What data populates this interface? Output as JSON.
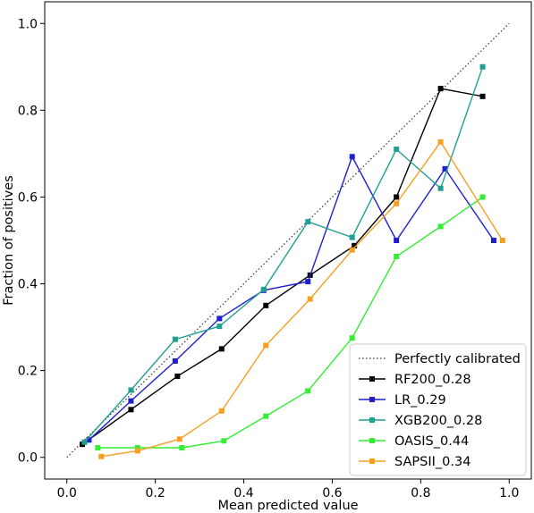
{
  "chart_data": {
    "type": "line",
    "xlabel": "Mean predicted value",
    "ylabel": "Fraction of positives",
    "xlim": [
      -0.05,
      1.05
    ],
    "ylim": [
      -0.05,
      1.05
    ],
    "xticks": [
      "0.0",
      "0.2",
      "0.4",
      "0.6",
      "0.8",
      "1.0"
    ],
    "yticks": [
      "0.0",
      "0.2",
      "0.4",
      "0.6",
      "0.8",
      "1.0"
    ],
    "legend_placement": "lower-right",
    "reference": {
      "name": "Perfectly calibrated",
      "x": [
        0,
        1
      ],
      "y": [
        0,
        1
      ],
      "color": "#333333",
      "style": "dotted"
    },
    "series": [
      {
        "name": "RF200_0.28",
        "color": "#000000",
        "x": [
          0.035,
          0.145,
          0.25,
          0.35,
          0.45,
          0.55,
          0.65,
          0.745,
          0.845,
          0.94
        ],
        "y": [
          0.03,
          0.11,
          0.187,
          0.25,
          0.35,
          0.42,
          0.488,
          0.6,
          0.85,
          0.832
        ]
      },
      {
        "name": "LR_0.29",
        "color": "#1f1fcf",
        "x": [
          0.05,
          0.145,
          0.245,
          0.345,
          0.445,
          0.545,
          0.645,
          0.745,
          0.855,
          0.965
        ],
        "y": [
          0.04,
          0.13,
          0.222,
          0.32,
          0.385,
          0.405,
          0.693,
          0.5,
          0.665,
          0.5
        ]
      },
      {
        "name": "XGB200_0.28",
        "color": "#20a090",
        "x": [
          0.04,
          0.145,
          0.245,
          0.345,
          0.445,
          0.545,
          0.645,
          0.745,
          0.845,
          0.94
        ],
        "y": [
          0.035,
          0.155,
          0.272,
          0.302,
          0.387,
          0.543,
          0.507,
          0.71,
          0.62,
          0.9
        ]
      },
      {
        "name": "OASIS_0.44",
        "color": "#33ee33",
        "x": [
          0.07,
          0.16,
          0.26,
          0.355,
          0.45,
          0.545,
          0.645,
          0.745,
          0.845,
          0.94
        ],
        "y": [
          0.022,
          0.022,
          0.022,
          0.038,
          0.095,
          0.153,
          0.275,
          0.463,
          0.532,
          0.6
        ]
      },
      {
        "name": "SAPSII_0.34",
        "color": "#f5a020",
        "x": [
          0.078,
          0.16,
          0.255,
          0.35,
          0.45,
          0.55,
          0.645,
          0.745,
          0.845,
          0.985
        ],
        "y": [
          0.002,
          0.015,
          0.042,
          0.107,
          0.258,
          0.365,
          0.478,
          0.585,
          0.727,
          0.5
        ]
      }
    ]
  }
}
